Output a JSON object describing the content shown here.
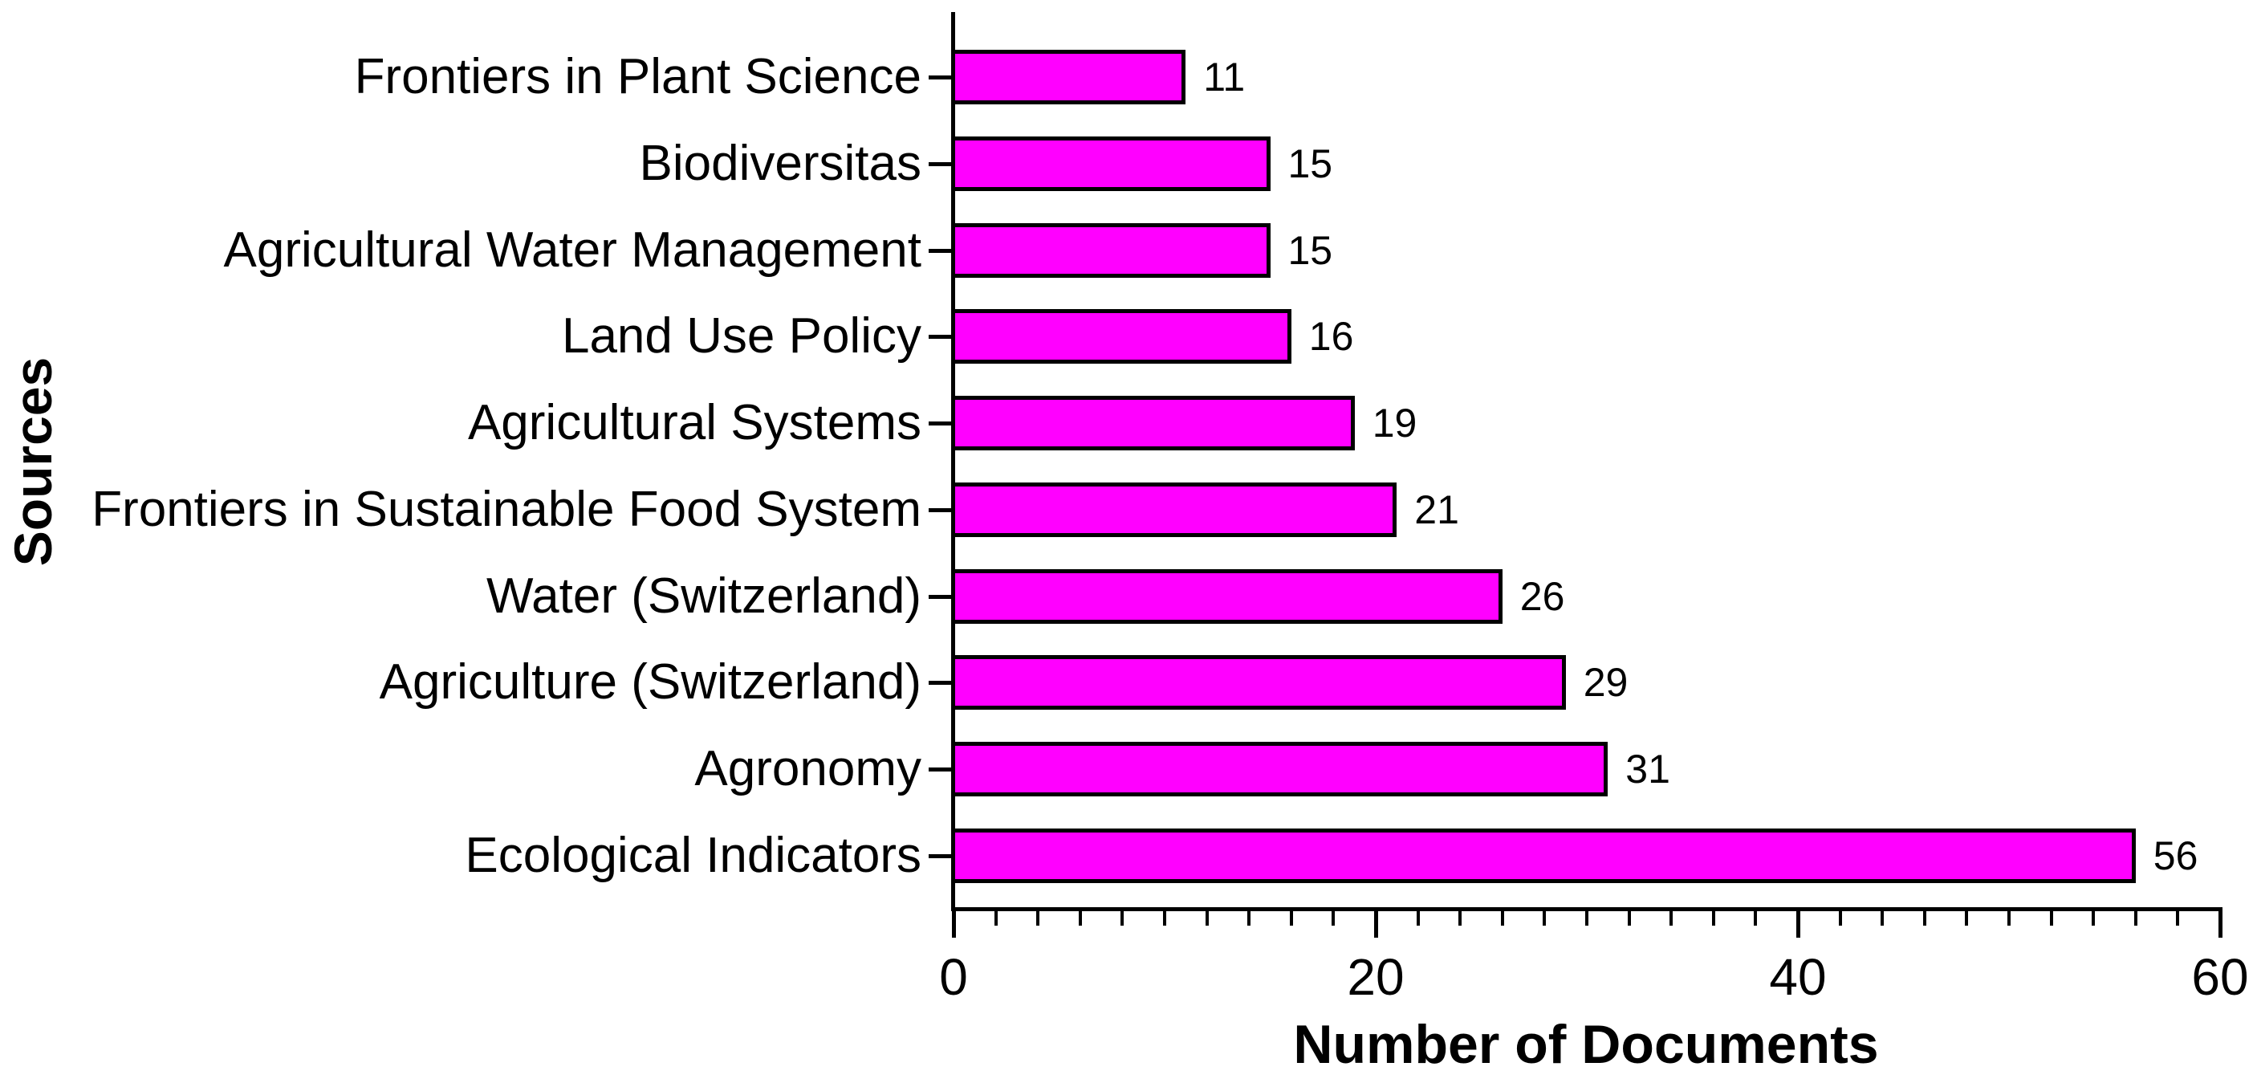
{
  "chart_data": {
    "type": "bar",
    "orientation": "horizontal",
    "xlabel": "Number of Documents",
    "ylabel": "Sources",
    "categories": [
      "Frontiers in Plant Science",
      "Biodiversitas",
      "Agricultural Water Management",
      "Land Use Policy",
      "Agricultural Systems",
      "Frontiers in Sustainable Food System",
      "Water (Switzerland)",
      "Agriculture (Switzerland)",
      "Agronomy",
      "Ecological Indicators"
    ],
    "values": [
      11,
      15,
      15,
      16,
      19,
      21,
      26,
      29,
      31,
      56
    ],
    "value_labels": [
      "11",
      "15",
      "15",
      "16",
      "19",
      "21",
      "26",
      "29",
      "31",
      "56"
    ],
    "xlim": [
      0,
      60
    ],
    "x_major_ticks": [
      0,
      20,
      40,
      60
    ],
    "x_major_tick_labels": [
      "0",
      "20",
      "40",
      "60"
    ],
    "x_minor_tick_step": 2,
    "grid": false,
    "legend": null,
    "colors": {
      "bar_fill": "#FF00FF",
      "bar_border": "#000000",
      "axis": "#000000",
      "text": "#000000",
      "background": "#FFFFFF"
    }
  }
}
